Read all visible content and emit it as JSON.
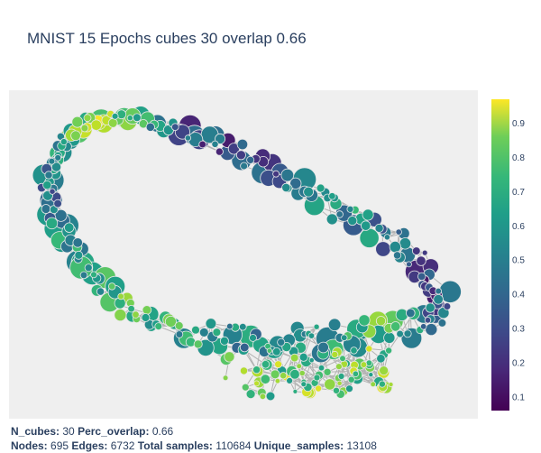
{
  "title": "MNIST 15 Epochs cubes 30 overlap 0.66",
  "chart_data": {
    "type": "scatter",
    "description_kind": "mapper graph (kepler mapper) with nodes colored by mean value",
    "colorscale": "viridis",
    "colorbar": {
      "range": [
        0.06,
        0.97
      ],
      "ticks": [
        "0.1",
        "0.2",
        "0.3",
        "0.4",
        "0.5",
        "0.6",
        "0.7",
        "0.8",
        "0.9"
      ],
      "tick_values": [
        0.1,
        0.2,
        0.3,
        0.4,
        0.5,
        0.6,
        0.7,
        0.8,
        0.9
      ]
    },
    "plot_background": "#efefef",
    "edge_color": "#b3b3b3",
    "node_outline_color": "#e8e8e8",
    "grid": false,
    "axes_visible": false
  },
  "footer": {
    "line1": [
      {
        "label": "N_cubes:",
        "value": "30"
      },
      {
        "label": "Perc_overlap:",
        "value": "0.66"
      }
    ],
    "line2": [
      {
        "label": "Nodes:",
        "value": "695"
      },
      {
        "label": "Edges:",
        "value": "6732"
      },
      {
        "label": "Total samples:",
        "value": "110684"
      },
      {
        "label": "Unique_samples:",
        "value": "13108"
      }
    ]
  }
}
